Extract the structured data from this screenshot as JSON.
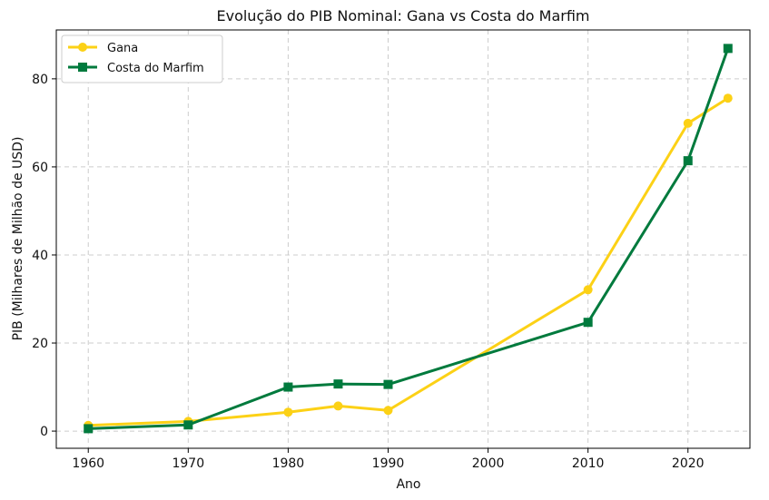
{
  "chart_data": {
    "type": "line",
    "title": "Evolução do PIB Nominal: Gana vs Costa do Marfim",
    "xlabel": "Ano",
    "ylabel": "PIB (Milhares de Milhão de USD)",
    "xlim": [
      1956.8,
      2026.2
    ],
    "ylim": [
      -3.9,
      91.1
    ],
    "xticks": [
      1960,
      1970,
      1980,
      1990,
      2000,
      2010,
      2020
    ],
    "yticks": [
      0,
      20,
      40,
      60,
      80
    ],
    "grid": true,
    "legend_position": "top-left",
    "x": [
      1960,
      1970,
      1980,
      1985,
      1990,
      2010,
      2020,
      2024
    ],
    "series": [
      {
        "name": "Gana",
        "color": "#FCD116",
        "marker": "circle",
        "values": [
          1.3,
          2.2,
          4.3,
          5.7,
          4.7,
          32.1,
          69.9,
          75.6
        ]
      },
      {
        "name": "Costa do Marfim",
        "color": "#007A3D",
        "marker": "square",
        "values": [
          0.55,
          1.4,
          10.0,
          10.7,
          10.6,
          24.7,
          61.4,
          86.9
        ]
      }
    ]
  }
}
